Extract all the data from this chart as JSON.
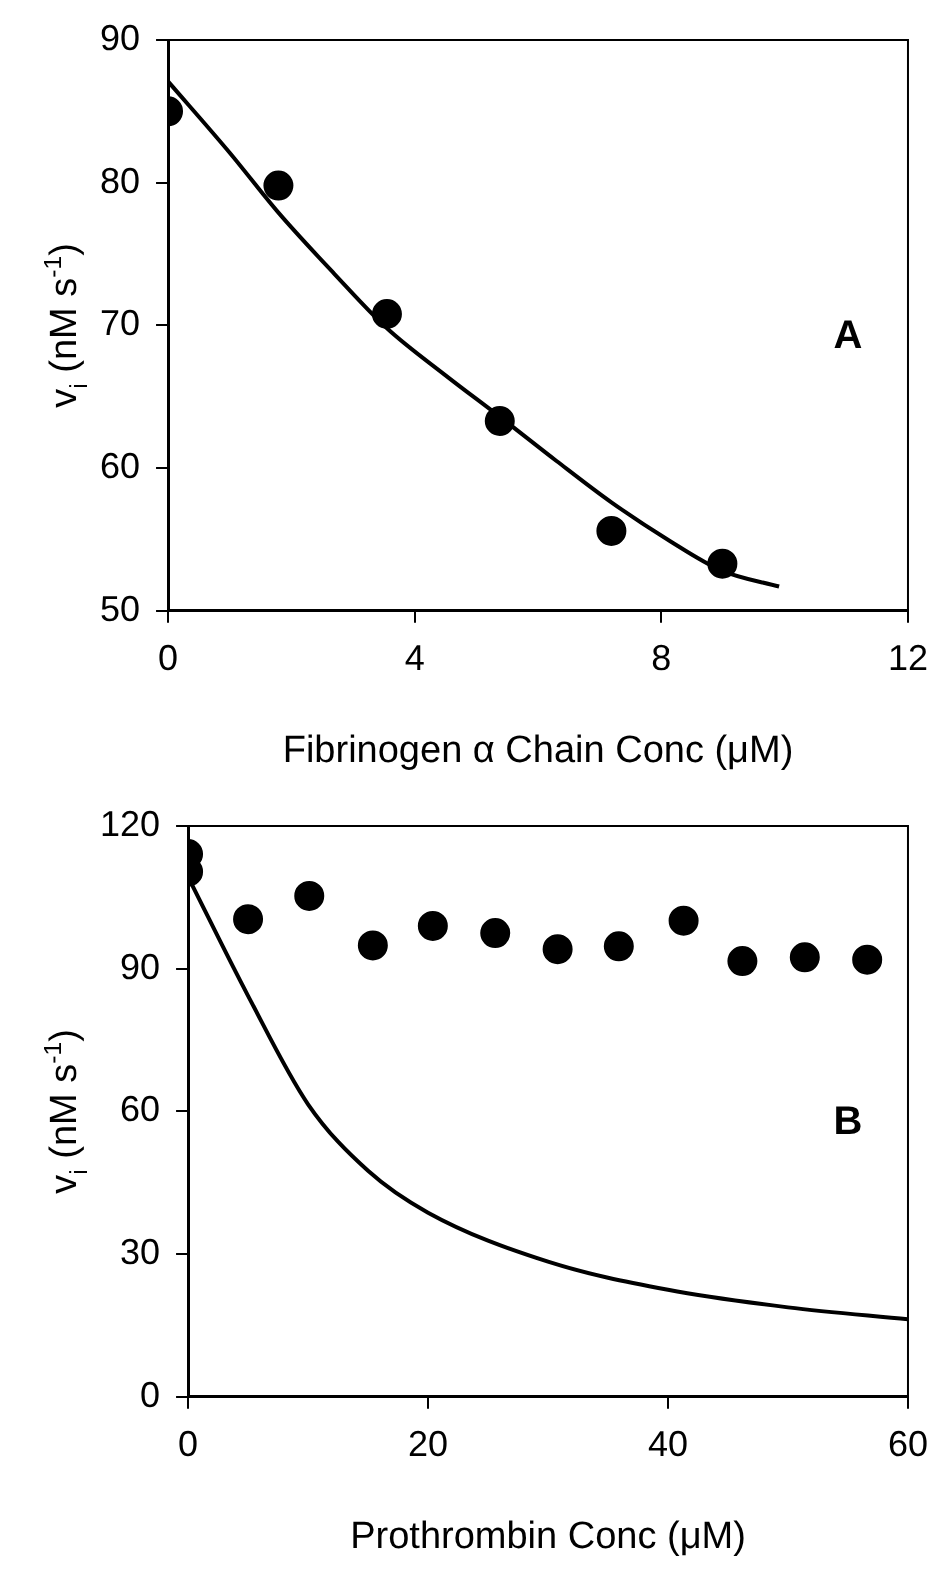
{
  "chart_data": [
    {
      "type": "scatter",
      "xlabel": "Fibrinogen α Chain Conc (μM)",
      "ylabel": "v$_{i}$ (nM s$^{-1}$)",
      "xlim": [
        0,
        12
      ],
      "xticks": [
        0,
        4,
        8,
        12
      ],
      "ylim": [
        50,
        90
      ],
      "yticks": [
        50,
        60,
        70,
        80,
        90
      ],
      "grid": false,
      "legend": false,
      "annotations": [
        "A"
      ],
      "series": [
        {
          "color": "#000000",
          "marker": "circle",
          "x": [
            0,
            1.79,
            3.55,
            5.38,
            7.19,
            8.99
          ],
          "values": [
            85,
            79.8,
            70.8,
            63.3,
            55.6,
            53.3
          ]
        },
        {
          "type": "line",
          "color": "#000000",
          "line_style": "solid",
          "x": [
            0,
            1,
            1.79,
            2.7,
            3.55,
            4.5,
            5.38,
            6.3,
            7.19,
            8.1,
            8.99,
            9.91
          ],
          "values": [
            87.1,
            82.1,
            77.9,
            73.6,
            69.8,
            66.5,
            63.6,
            60.5,
            57.6,
            55,
            52.8,
            51.7
          ]
        }
      ]
    },
    {
      "type": "scatter",
      "xlabel": "Prothrombin Conc (μM)",
      "ylabel": "v$_{i}$ (nM s$^{-1}$)",
      "xlim": [
        0,
        60
      ],
      "xticks": [
        0,
        20,
        40,
        60
      ],
      "ylim": [
        0,
        120
      ],
      "yticks": [
        0,
        30,
        60,
        90,
        120
      ],
      "grid": false,
      "legend": false,
      "annotations": [
        "B"
      ],
      "series": [
        {
          "color": "#000000",
          "marker": "circle",
          "x": [
            0,
            0,
            5,
            10.1,
            15.4,
            20.4,
            25.6,
            30.8,
            35.9,
            41.3,
            46.2,
            51.4,
            56.6
          ],
          "values": [
            114.1,
            110.4,
            100.4,
            105.3,
            94.9,
            99,
            97.5,
            94.1,
            94.7,
            100.1,
            91.6,
            92.4,
            91.9
          ]
        },
        {
          "type": "line",
          "color": "#000000",
          "line_style": "solid",
          "x": [
            0,
            5,
            10,
            15,
            20,
            30,
            40,
            50,
            60
          ],
          "values": [
            109.3,
            84.3,
            61.5,
            47.5,
            38.7,
            28.4,
            22.5,
            18.8,
            16.3
          ]
        }
      ]
    }
  ]
}
